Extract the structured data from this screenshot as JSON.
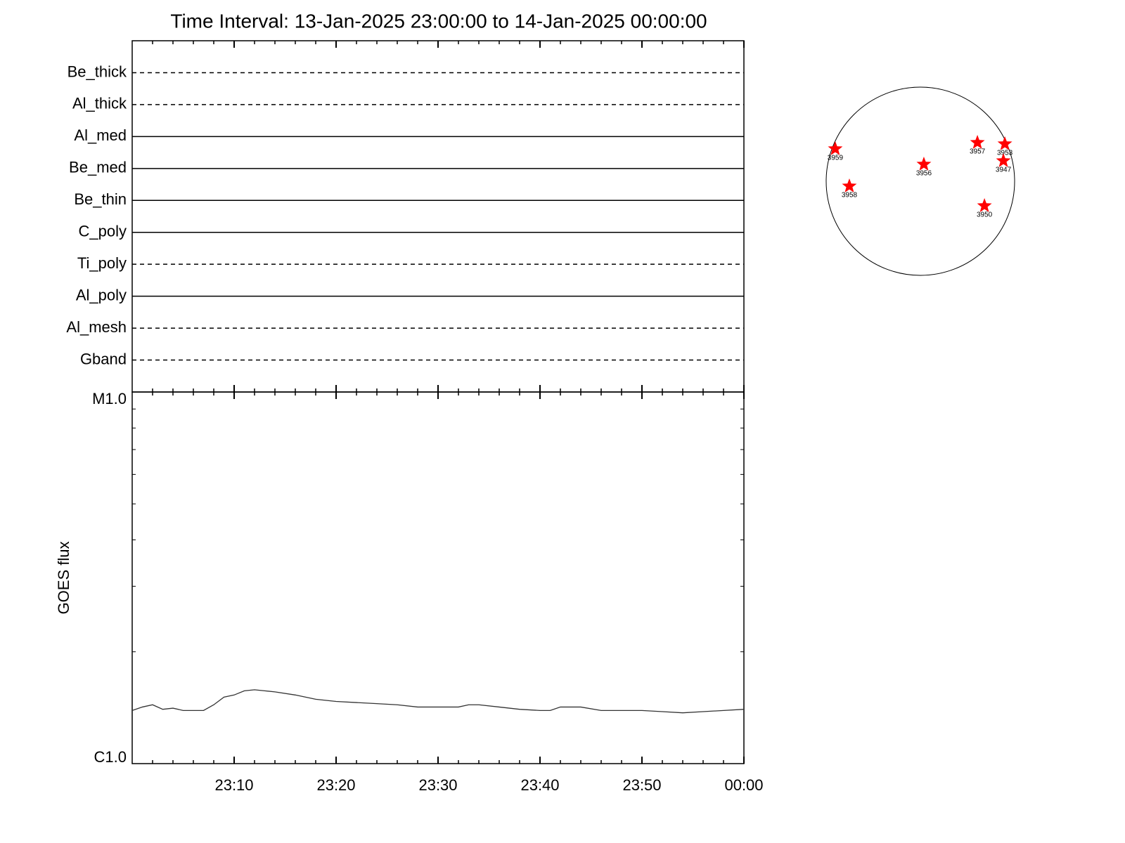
{
  "chart_data": [
    {
      "type": "channels",
      "title": "Time Interval: 13-Jan-2025 23:00:00 to 14-Jan-2025 00:00:00",
      "categories": [
        "Be_thick",
        "Al_thick",
        "Al_med",
        "Be_med",
        "Be_thin",
        "C_poly",
        "Ti_poly",
        "Al_poly",
        "Al_mesh",
        "Gband"
      ],
      "line_styles": [
        "dashed",
        "dashed",
        "solid",
        "solid",
        "solid",
        "solid",
        "dashed",
        "solid",
        "dashed",
        "dashed"
      ]
    },
    {
      "type": "line",
      "ylabel": "GOES flux",
      "log_y": true,
      "xlim": [
        0,
        60
      ],
      "xticks": [
        {
          "value": 10,
          "label": "23:10"
        },
        {
          "value": 20,
          "label": "23:20"
        },
        {
          "value": 30,
          "label": "23:30"
        },
        {
          "value": 40,
          "label": "23:40"
        },
        {
          "value": 50,
          "label": "23:50"
        },
        {
          "value": 60,
          "label": "00:00"
        }
      ],
      "xminor_step": 2,
      "ylim": [
        1e-06,
        1e-05
      ],
      "yticks": [
        {
          "value": 1e-06,
          "label": "C1.0"
        },
        {
          "value": 1e-05,
          "label": "M1.0"
        }
      ],
      "yminorticks": [
        2e-06,
        3e-06,
        4e-06,
        5e-06,
        6e-06,
        7e-06,
        8e-06,
        9e-06
      ],
      "color": "#333333",
      "x": [
        0,
        1,
        2,
        3,
        4,
        5,
        6,
        7,
        8,
        9,
        10,
        11,
        12,
        13,
        14,
        16,
        18,
        20,
        22,
        24,
        26,
        28,
        30,
        32,
        33,
        34,
        36,
        38,
        40,
        41,
        42,
        44,
        46,
        48,
        50,
        52,
        54,
        56,
        58,
        60
      ],
      "values": [
        1.39e-06,
        1.42e-06,
        1.44e-06,
        1.4e-06,
        1.41e-06,
        1.39e-06,
        1.39e-06,
        1.39e-06,
        1.44e-06,
        1.51e-06,
        1.53e-06,
        1.57e-06,
        1.58e-06,
        1.57e-06,
        1.56e-06,
        1.53e-06,
        1.49e-06,
        1.47e-06,
        1.46e-06,
        1.45e-06,
        1.44e-06,
        1.42e-06,
        1.42e-06,
        1.42e-06,
        1.44e-06,
        1.44e-06,
        1.42e-06,
        1.4e-06,
        1.39e-06,
        1.39e-06,
        1.42e-06,
        1.42e-06,
        1.39e-06,
        1.39e-06,
        1.39e-06,
        1.38e-06,
        1.37e-06,
        1.38e-06,
        1.39e-06,
        1.4e-06
      ]
    },
    {
      "type": "disk",
      "xlim": [
        -975,
        975
      ],
      "ylim": [
        -975,
        975
      ],
      "color": "#ff0000",
      "names": [
        "3959",
        "3958",
        "3956",
        "3957",
        "3953",
        "3947",
        "3950"
      ],
      "x": [
        -881,
        -735,
        36,
        590,
        874,
        859,
        663
      ],
      "y": [
        335,
        -51,
        175,
        400,
        386,
        211,
        -255
      ]
    }
  ]
}
